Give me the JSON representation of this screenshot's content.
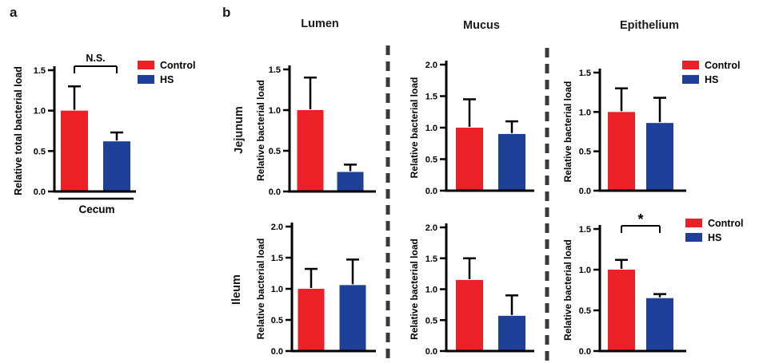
{
  "figure": {
    "panel_a_label": "a",
    "panel_b_label": "b",
    "panel_b": {
      "columns": [
        "Lumen",
        "Mucus",
        "Epithelium"
      ],
      "rows": [
        "Jejunum",
        "Ileum"
      ]
    },
    "legend_labels": {
      "control": "Control",
      "hs": "HS"
    },
    "colors": {
      "control": "#EC2127",
      "hs": "#1F4099",
      "axis": "#000000",
      "separator": "#3A3A3A"
    }
  },
  "chart_data": [
    {
      "id": "cecum",
      "type": "bar",
      "panel": "a",
      "title": "Cecum",
      "xlabel": "Cecum",
      "ylabel": "Relative total bacterial load",
      "ylim": [
        0,
        1.5
      ],
      "ytick_step": 0.5,
      "categories": [
        "Control",
        "HS"
      ],
      "values": [
        1.0,
        0.62
      ],
      "error_tops": [
        1.3,
        0.73
      ],
      "significance": "N.S.",
      "legend": true
    },
    {
      "id": "jejunum-lumen",
      "type": "bar",
      "panel": "b",
      "row": "Jejunum",
      "column": "Lumen",
      "ylabel": "Relative bacterial load",
      "ylim": [
        0,
        1.5
      ],
      "ytick_step": 0.5,
      "categories": [
        "Control",
        "HS"
      ],
      "values": [
        1.0,
        0.24
      ],
      "error_tops": [
        1.4,
        0.33
      ],
      "significance": null,
      "legend": false
    },
    {
      "id": "jejunum-mucus",
      "type": "bar",
      "panel": "b",
      "row": "Jejunum",
      "column": "Mucus",
      "ylabel": "Relative bacterial load",
      "ylim": [
        0,
        2.0
      ],
      "ytick_step": 0.5,
      "categories": [
        "Control",
        "HS"
      ],
      "values": [
        1.0,
        0.9
      ],
      "error_tops": [
        1.45,
        1.1
      ],
      "significance": null,
      "legend": false
    },
    {
      "id": "jejunum-epithelium",
      "type": "bar",
      "panel": "b",
      "row": "Jejunum",
      "column": "Epithelium",
      "ylabel": "Relative bacterial load",
      "ylim": [
        0,
        1.5
      ],
      "ytick_step": 0.5,
      "categories": [
        "Control",
        "HS"
      ],
      "values": [
        1.0,
        0.86
      ],
      "error_tops": [
        1.3,
        1.18
      ],
      "significance": null,
      "legend": true
    },
    {
      "id": "ileum-lumen",
      "type": "bar",
      "panel": "b",
      "row": "Ileum",
      "column": "Lumen",
      "ylabel": "Relative bacterial load",
      "ylim": [
        0,
        2.0
      ],
      "ytick_step": 0.5,
      "categories": [
        "Control",
        "HS"
      ],
      "values": [
        1.0,
        1.06
      ],
      "error_tops": [
        1.32,
        1.47
      ],
      "significance": null,
      "legend": false
    },
    {
      "id": "ileum-mucus",
      "type": "bar",
      "panel": "b",
      "row": "Ileum",
      "column": "Mucus",
      "ylabel": "Relative bacterial load",
      "ylim": [
        0,
        2.0
      ],
      "ytick_step": 0.5,
      "categories": [
        "Control",
        "HS"
      ],
      "values": [
        1.15,
        0.57
      ],
      "error_tops": [
        1.5,
        0.9
      ],
      "significance": null,
      "legend": false
    },
    {
      "id": "ileum-epithelium",
      "type": "bar",
      "panel": "b",
      "row": "Ileum",
      "column": "Epithelium",
      "ylabel": "Relative bacterial load",
      "ylim": [
        0,
        1.5
      ],
      "ytick_step": 0.5,
      "categories": [
        "Control",
        "HS"
      ],
      "values": [
        1.0,
        0.65
      ],
      "error_tops": [
        1.12,
        0.7
      ],
      "significance": "*",
      "legend": true
    }
  ]
}
